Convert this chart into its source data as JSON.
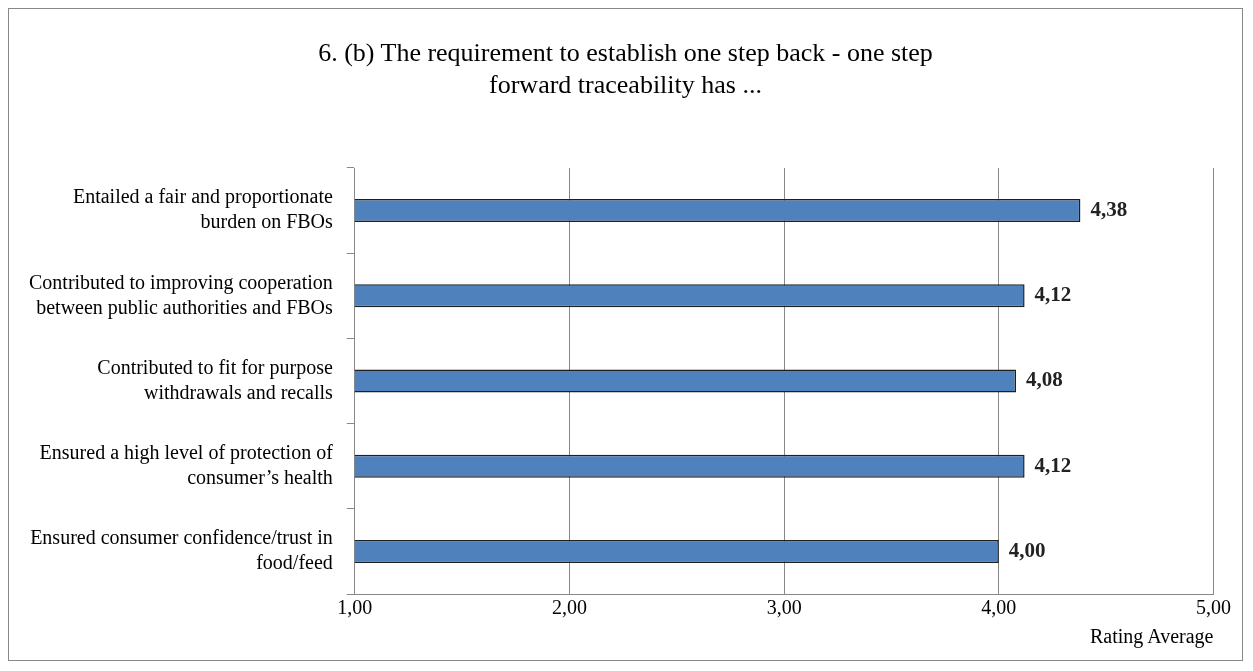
{
  "chart_data": {
    "type": "bar",
    "orientation": "horizontal",
    "title": "6. (b) The requirement to establish one step back - one step forward traceability has ...",
    "categories": [
      "Entailed a fair and proportionate burden on FBOs",
      "Contributed to improving cooperation between public authorities and FBOs",
      "Contributed to fit for purpose withdrawals and recalls",
      "Ensured a high level of protection of consumer’s health",
      "Ensured consumer confidence/trust in food/feed"
    ],
    "values": [
      4.38,
      4.12,
      4.08,
      4.12,
      4.0
    ],
    "value_labels": [
      "4,38",
      "4,12",
      "4,08",
      "4,12",
      "4,00"
    ],
    "color": "#4f81bd",
    "xlim": [
      1,
      5
    ],
    "xticks": [
      {
        "value": 1,
        "label": "1,00"
      },
      {
        "value": 2,
        "label": "2,00"
      },
      {
        "value": 3,
        "label": "3,00"
      },
      {
        "value": 4,
        "label": "4,00"
      },
      {
        "value": 5,
        "label": "5,00"
      }
    ],
    "xlabel": "Rating Average",
    "grid": "x",
    "legend": false
  }
}
